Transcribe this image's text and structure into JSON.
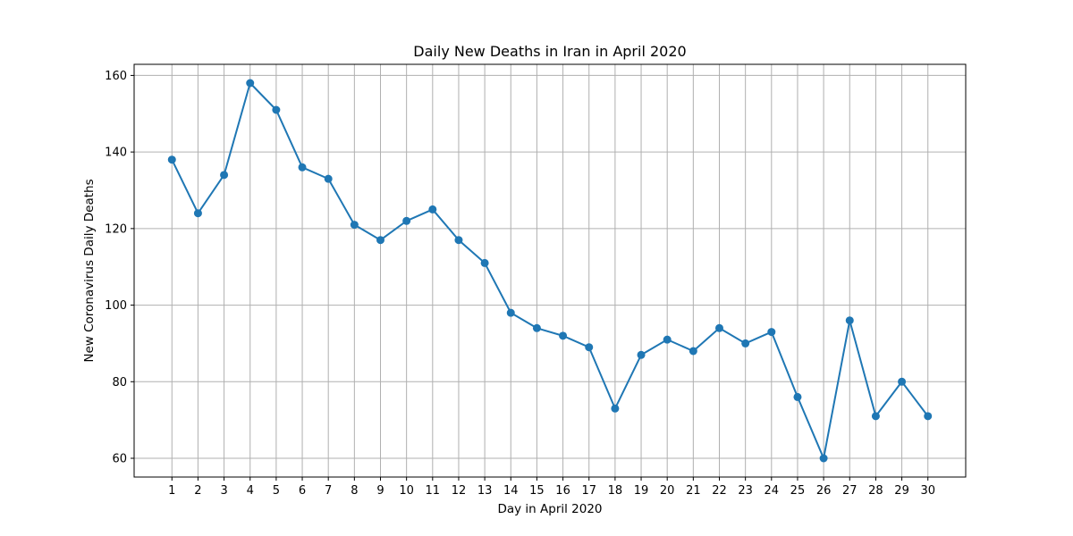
{
  "chart_data": {
    "type": "line",
    "title": "Daily New Deaths in Iran in April 2020",
    "xlabel": "Day in April 2020",
    "ylabel": "New Coronavirus Daily Deaths",
    "x": [
      1,
      2,
      3,
      4,
      5,
      6,
      7,
      8,
      9,
      10,
      11,
      12,
      13,
      14,
      15,
      16,
      17,
      18,
      19,
      20,
      21,
      22,
      23,
      24,
      25,
      26,
      27,
      28,
      29,
      30
    ],
    "series": [
      {
        "values": [
          138,
          124,
          134,
          158,
          151,
          136,
          133,
          121,
          117,
          122,
          125,
          117,
          111,
          98,
          94,
          92,
          89,
          73,
          87,
          91,
          88,
          94,
          90,
          93,
          76,
          60,
          96,
          71,
          80,
          71
        ],
        "color": "#1f77b4",
        "marker": "circle"
      }
    ],
    "xticks": [
      "1",
      "2",
      "3",
      "4",
      "5",
      "6",
      "7",
      "8",
      "9",
      "10",
      "11",
      "12",
      "13",
      "14",
      "15",
      "16",
      "17",
      "18",
      "19",
      "20",
      "21",
      "22",
      "23",
      "24",
      "25",
      "26",
      "27",
      "28",
      "29",
      "30"
    ],
    "yticks": [
      "60",
      "80",
      "100",
      "120",
      "140",
      "160"
    ],
    "xlim": [
      -0.45,
      31.45
    ],
    "ylim": [
      55.1,
      162.9
    ],
    "grid": true,
    "legend": "none"
  }
}
